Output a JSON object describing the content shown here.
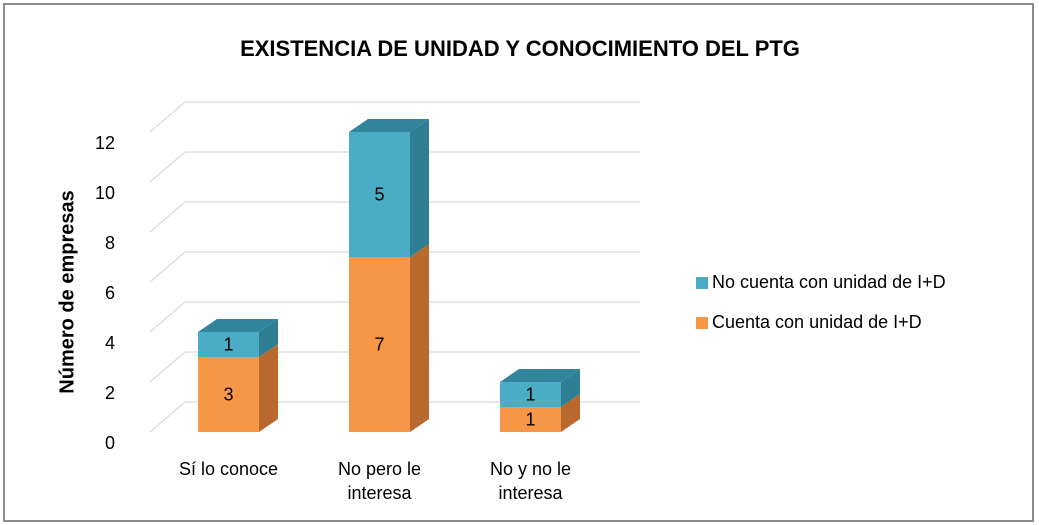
{
  "chart_data": {
    "type": "bar3d_stacked",
    "title": "EXISTENCIA DE UNIDAD Y CONOCIMIENTO DEL PTG",
    "y_label": "Número de empresas",
    "categories": [
      [
        "Sí lo conoce"
      ],
      [
        "No pero le",
        "interesa"
      ],
      [
        "No y no le",
        "interesa"
      ]
    ],
    "series": [
      {
        "name": "Cuenta con unidad de I+D",
        "color": "#F79646",
        "side": "#B9692D",
        "top": "#C87533",
        "values": [
          3,
          7,
          1
        ]
      },
      {
        "name": "No cuenta con unidad de I+D",
        "color": "#4BACC6",
        "side": "#2F7F94",
        "top": "#31849B",
        "values": [
          1,
          5,
          1
        ]
      }
    ],
    "ylim": [
      0,
      12
    ],
    "yticks": [
      0,
      2,
      4,
      6,
      8,
      10,
      12
    ],
    "grid": true,
    "legend": "right"
  }
}
